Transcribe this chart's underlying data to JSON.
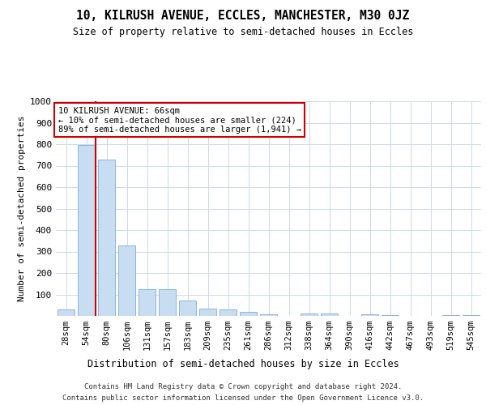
{
  "title": "10, KILRUSH AVENUE, ECCLES, MANCHESTER, M30 0JZ",
  "subtitle": "Size of property relative to semi-detached houses in Eccles",
  "xlabel": "Distribution of semi-detached houses by size in Eccles",
  "ylabel": "Number of semi-detached properties",
  "categories": [
    "28sqm",
    "54sqm",
    "80sqm",
    "106sqm",
    "131sqm",
    "157sqm",
    "183sqm",
    "209sqm",
    "235sqm",
    "261sqm",
    "286sqm",
    "312sqm",
    "338sqm",
    "364sqm",
    "390sqm",
    "416sqm",
    "442sqm",
    "467sqm",
    "493sqm",
    "519sqm",
    "545sqm"
  ],
  "values": [
    30,
    795,
    730,
    330,
    125,
    125,
    70,
    35,
    30,
    20,
    8,
    0,
    12,
    12,
    0,
    8,
    5,
    0,
    0,
    5,
    5
  ],
  "bar_color": "#c9ddf2",
  "bar_edge_color": "#7aadd4",
  "vline_x_pos": 1.45,
  "vline_color": "#cc0000",
  "annotation_text": "10 KILRUSH AVENUE: 66sqm\n← 10% of semi-detached houses are smaller (224)\n89% of semi-detached houses are larger (1,941) →",
  "annotation_box_color": "#ffffff",
  "annotation_box_edge": "#cc0000",
  "background_color": "#ffffff",
  "grid_color": "#ccdaeb",
  "ylim": [
    0,
    1000
  ],
  "yticks": [
    0,
    100,
    200,
    300,
    400,
    500,
    600,
    700,
    800,
    900,
    1000
  ],
  "footer_line1": "Contains HM Land Registry data © Crown copyright and database right 2024.",
  "footer_line2": "Contains public sector information licensed under the Open Government Licence v3.0."
}
